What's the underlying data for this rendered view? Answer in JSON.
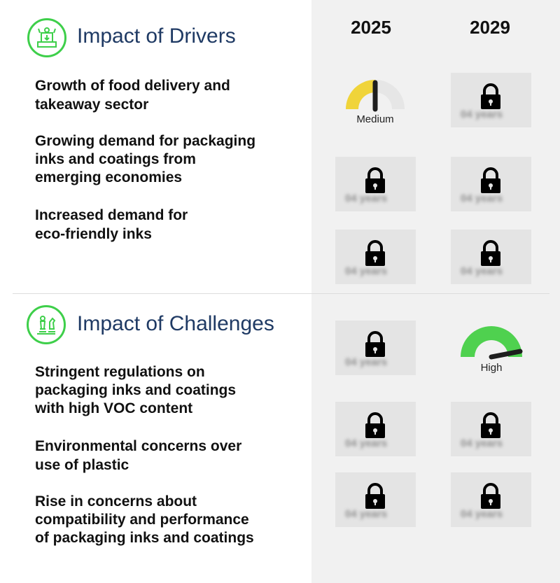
{
  "years": [
    "2025",
    "2029"
  ],
  "drivers": {
    "title": "Impact of Drivers",
    "icon": "gear-machine-icon",
    "rows": [
      {
        "lines": [
          "Growth of food delivery and",
          "takeaway sector"
        ],
        "y2025": {
          "status": "gauge",
          "level": "Medium"
        },
        "y2029": {
          "status": "locked",
          "blurred_text": "04 years"
        }
      },
      {
        "lines": [
          "Growing demand for packaging",
          "inks and coatings from",
          "emerging economies"
        ],
        "y2025": {
          "status": "locked",
          "blurred_text": "04 years"
        },
        "y2029": {
          "status": "locked",
          "blurred_text": "04 years"
        }
      },
      {
        "lines": [
          "Increased demand for",
          "eco-friendly inks"
        ],
        "y2025": {
          "status": "locked",
          "blurred_text": "04 years"
        },
        "y2029": {
          "status": "locked",
          "blurred_text": "04 years"
        }
      }
    ]
  },
  "challenges": {
    "title": "Impact of Challenges",
    "icon": "chess-pieces-icon",
    "rows": [
      {
        "lines": [
          "Stringent regulations on",
          "packaging inks and coatings",
          "with high VOC content"
        ],
        "y2025": {
          "status": "locked",
          "blurred_text": "04 years"
        },
        "y2029": {
          "status": "gauge",
          "level": "High"
        }
      },
      {
        "lines": [
          "Environmental concerns over",
          "use of plastic"
        ],
        "y2025": {
          "status": "locked",
          "blurred_text": "04 years"
        },
        "y2029": {
          "status": "locked",
          "blurred_text": "04 years"
        }
      },
      {
        "lines": [
          "Rise in concerns about",
          "compatibility and performance",
          "of packaging inks and coatings"
        ],
        "y2025": {
          "status": "locked",
          "blurred_text": "04 years"
        },
        "y2029": {
          "status": "locked",
          "blurred_text": "04 years"
        }
      }
    ]
  },
  "colors": {
    "title": "#1f3a64",
    "icon_ring": "#3ecf4a",
    "gauge_medium": "#f0d43a",
    "gauge_high": "#4fd14f",
    "gauge_track": "#e6e6e6",
    "panel": "#f1f1f1"
  }
}
